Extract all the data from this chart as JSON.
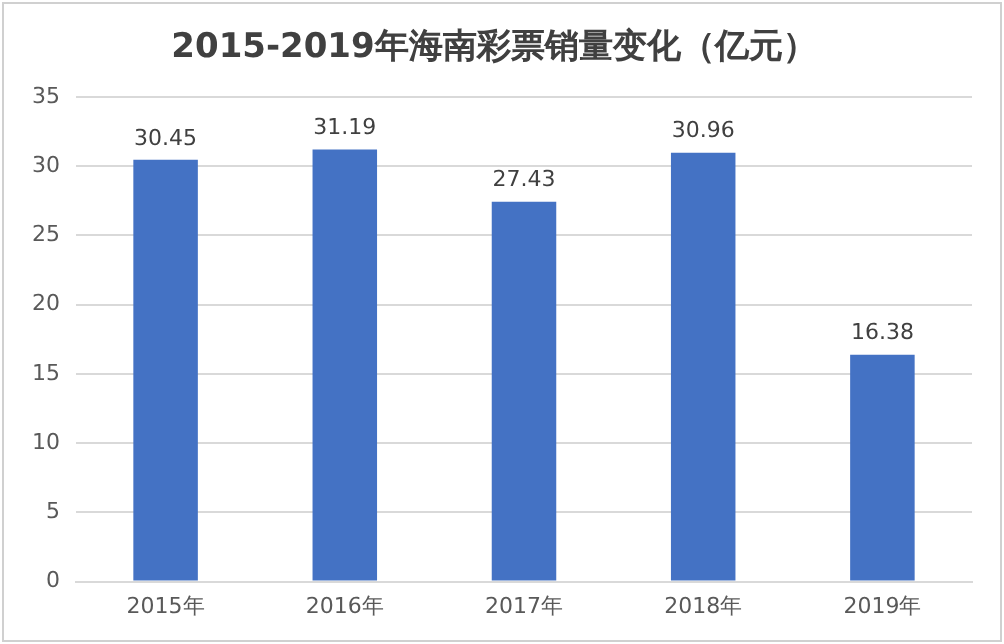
{
  "chart_data": {
    "type": "bar",
    "title": "2015-2019年海南彩票销量变化（亿元）",
    "categories": [
      "2015年",
      "2016年",
      "2017年",
      "2018年",
      "2019年"
    ],
    "values": [
      30.45,
      31.19,
      27.43,
      30.96,
      16.38
    ],
    "color": "#4472c4",
    "ylim": [
      0,
      35
    ],
    "yticks": [
      0,
      5,
      10,
      15,
      20,
      25,
      30,
      35
    ],
    "grid": "y",
    "data_labels": true,
    "legend": false
  }
}
